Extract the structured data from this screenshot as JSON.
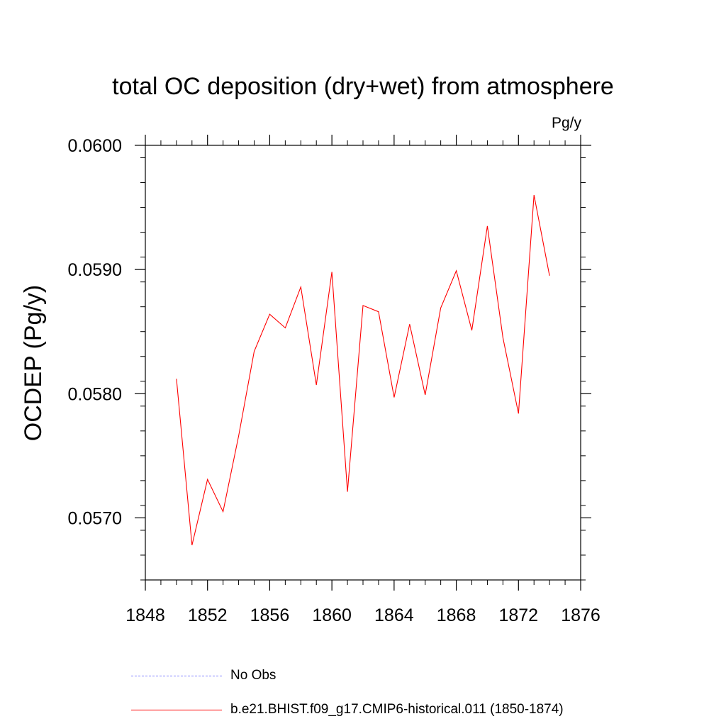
{
  "chart_data": {
    "type": "line",
    "title": "total OC deposition (dry+wet) from atmosphere",
    "units_label": "Pg/y",
    "ylabel": "OCDEP  (Pg/y)",
    "xlabel": "",
    "xlim": [
      1848,
      1876
    ],
    "ylim": [
      0.0565,
      0.06
    ],
    "x_ticks": [
      1848,
      1852,
      1856,
      1860,
      1864,
      1868,
      1872,
      1876
    ],
    "x_tick_labels": [
      "1848",
      "1852",
      "1856",
      "1860",
      "1864",
      "1868",
      "1872",
      "1876"
    ],
    "y_ticks": [
      0.057,
      0.058,
      0.059,
      0.06
    ],
    "y_tick_labels": [
      "0.0570",
      "0.0580",
      "0.0590",
      "0.0600"
    ],
    "grid": false,
    "legend_position": "bottom",
    "series": [
      {
        "name": "b.e21.BHIST.f09_g17.CMIP6-historical.011 (1850-1874)",
        "color": "#ff0000",
        "style": "solid",
        "x": [
          1850,
          1851,
          1852,
          1853,
          1854,
          1855,
          1856,
          1857,
          1858,
          1859,
          1860,
          1861,
          1862,
          1863,
          1864,
          1865,
          1866,
          1867,
          1868,
          1869,
          1870,
          1871,
          1872,
          1873,
          1874
        ],
        "y": [
          0.05812,
          0.05678,
          0.05731,
          0.05705,
          0.05766,
          0.05834,
          0.05864,
          0.05853,
          0.05886,
          0.05807,
          0.05898,
          0.05721,
          0.05871,
          0.05866,
          0.05797,
          0.05856,
          0.05799,
          0.05869,
          0.05899,
          0.05851,
          0.05935,
          0.05845,
          0.05784,
          0.0596,
          0.05895
        ]
      }
    ],
    "legend": [
      {
        "label": "No Obs",
        "color": "#7f7fff",
        "style": "dashed"
      },
      {
        "label": "b.e21.BHIST.f09_g17.CMIP6-historical.011 (1850-1874)",
        "color": "#ff0000",
        "style": "solid"
      }
    ]
  }
}
